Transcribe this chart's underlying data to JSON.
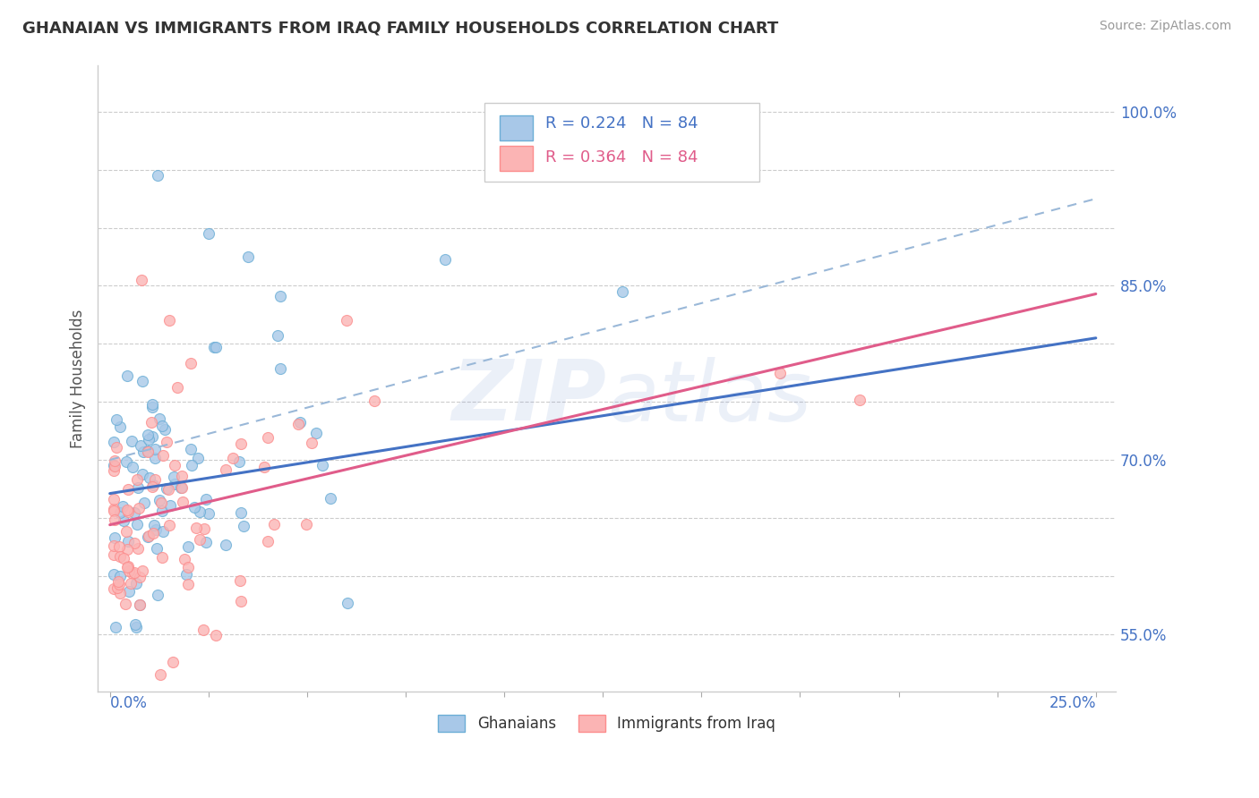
{
  "title": "GHANAIAN VS IMMIGRANTS FROM IRAQ FAMILY HOUSEHOLDS CORRELATION CHART",
  "source_text": "Source: ZipAtlas.com",
  "ylabel": "Family Households",
  "ylim": [
    0.5,
    1.04
  ],
  "xlim": [
    -0.003,
    0.255
  ],
  "yticks": [
    0.55,
    0.6,
    0.65,
    0.7,
    0.75,
    0.8,
    0.85,
    0.9,
    0.95,
    1.0
  ],
  "ytick_labels_right": [
    "55.0%",
    "",
    "",
    "70.0%",
    "",
    "",
    "85.0%",
    "",
    "",
    "100.0%"
  ],
  "xticks": [
    0.0,
    0.025,
    0.05,
    0.075,
    0.1,
    0.125,
    0.15,
    0.175,
    0.2,
    0.225,
    0.25
  ],
  "legend_label1": "Ghanaians",
  "legend_label2": "Immigrants from Iraq",
  "color_blue_fill": "#a8c8e8",
  "color_blue_edge": "#6baed6",
  "color_pink_fill": "#fbb4b4",
  "color_pink_edge": "#fc8d8d",
  "color_blue_line": "#4472c4",
  "color_pink_line": "#e05c8a",
  "color_dash_line": "#9ab8d8",
  "color_axis_text": "#4472c4",
  "watermark_text": "ZIPatlas",
  "blue_line_x0": 0.0,
  "blue_line_y0": 0.671,
  "blue_line_x1": 0.25,
  "blue_line_y1": 0.805,
  "pink_line_x0": 0.0,
  "pink_line_y0": 0.644,
  "pink_line_x1": 0.25,
  "pink_line_y1": 0.843,
  "dash_line_x0": 0.0,
  "dash_line_y0": 0.7,
  "dash_line_x1": 0.25,
  "dash_line_y1": 0.925
}
